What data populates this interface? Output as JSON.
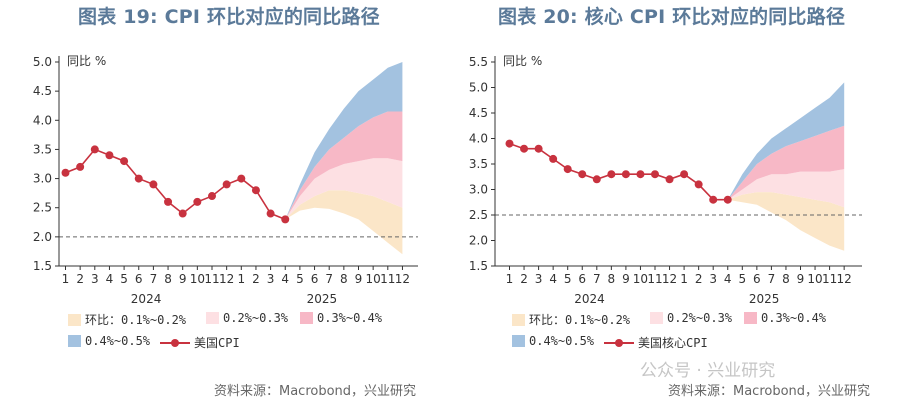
{
  "charts": [
    {
      "title": "图表 19: CPI 环比对应的同比路径",
      "source": "资料来源：Macrobond，兴业研究",
      "legend": {
        "band1": "环比：0.1%~0.2%",
        "band2": "0.2%~0.3%",
        "band3": "0.3%~0.4%",
        "band4": "0.4%~0.5%",
        "line": "美国CPI"
      }
    },
    {
      "title": "图表 20: 核心 CPI 环比对应的同比路径",
      "source": "资料来源：Macrobond，兴业研究",
      "legend": {
        "band1": "环比：0.1%~0.2%",
        "band2": "0.2%~0.3%",
        "band3": "0.3%~0.4%",
        "band4": "0.4%~0.5%",
        "line": "美国核心CPI"
      }
    }
  ],
  "watermark": "公众号 · 兴业研究",
  "colors": {
    "band1": "#fbe6c8",
    "band2": "#fde0e3",
    "band3": "#f7b8c6",
    "band4": "#a3c2e0",
    "line": "#c8323f",
    "title": "#5b7a99"
  },
  "chart_data": [
    {
      "type": "area",
      "title": "图表 19: CPI 环比对应的同比路径",
      "ylabel": "同比 %",
      "ylim": [
        1.5,
        5.0
      ],
      "yticks": [
        1.5,
        2.0,
        2.5,
        3.0,
        3.5,
        4.0,
        4.5,
        5.0
      ],
      "ytick_labels": [
        "1.5",
        "2.0",
        "2.5",
        "3.0",
        "3.5",
        "4.0",
        "4.5",
        "5.0"
      ],
      "x_labels": [
        "1",
        "2",
        "3",
        "4",
        "5",
        "6",
        "7",
        "8",
        "9",
        "10",
        "11",
        "12",
        "1",
        "2",
        "3",
        "4",
        "5",
        "6",
        "7",
        "8",
        "9",
        "10",
        "11",
        "12"
      ],
      "year_labels": [
        {
          "label": "2024",
          "center_index": 6
        },
        {
          "label": "2025",
          "center_index": 18
        }
      ],
      "reference_line": 2.0,
      "actual": {
        "name": "美国CPI",
        "x_index": [
          0,
          1,
          2,
          3,
          4,
          5,
          6,
          7,
          8,
          9,
          10,
          11,
          12,
          13,
          14,
          15
        ],
        "values": [
          3.1,
          3.2,
          3.5,
          3.4,
          3.3,
          3.0,
          2.9,
          2.6,
          2.4,
          2.6,
          2.7,
          2.9,
          3.0,
          2.8,
          2.4,
          2.3
        ]
      },
      "forecast_x_index": [
        15,
        16,
        17,
        18,
        19,
        20,
        21,
        22,
        23
      ],
      "forecast_bounds": [
        [
          2.3,
          2.45,
          2.5,
          2.48,
          2.4,
          2.3,
          2.1,
          1.9,
          1.7
        ],
        [
          2.3,
          2.55,
          2.7,
          2.8,
          2.8,
          2.75,
          2.7,
          2.6,
          2.5
        ],
        [
          2.3,
          2.7,
          3.0,
          3.15,
          3.25,
          3.3,
          3.35,
          3.35,
          3.3
        ],
        [
          2.3,
          2.8,
          3.2,
          3.5,
          3.7,
          3.9,
          4.05,
          4.15,
          4.15
        ],
        [
          2.3,
          2.9,
          3.45,
          3.85,
          4.2,
          4.5,
          4.7,
          4.9,
          5.0
        ]
      ],
      "bands": [
        "环比：0.1%~0.2%",
        "0.2%~0.3%",
        "0.3%~0.4%",
        "0.4%~0.5%"
      ]
    },
    {
      "type": "area",
      "title": "图表 20: 核心 CPI 环比对应的同比路径",
      "ylabel": "同比 %",
      "ylim": [
        1.5,
        5.5
      ],
      "yticks": [
        1.5,
        2.0,
        2.5,
        3.0,
        3.5,
        4.0,
        4.5,
        5.0,
        5.5
      ],
      "ytick_labels": [
        "1.5",
        "2.0",
        "2.5",
        "3.0",
        "3.5",
        "4.0",
        "4.5",
        "5.0",
        "5.5"
      ],
      "x_labels": [
        "1",
        "2",
        "3",
        "4",
        "5",
        "6",
        "7",
        "8",
        "9",
        "10",
        "11",
        "12",
        "1",
        "2",
        "3",
        "4",
        "5",
        "6",
        "7",
        "8",
        "9",
        "10",
        "11",
        "12"
      ],
      "year_labels": [
        {
          "label": "2024",
          "center_index": 6
        },
        {
          "label": "2025",
          "center_index": 18
        }
      ],
      "reference_line": 2.5,
      "actual": {
        "name": "美国核心CPI",
        "x_index": [
          0,
          1,
          2,
          3,
          4,
          5,
          6,
          7,
          8,
          9,
          10,
          11,
          12,
          13,
          14,
          15
        ],
        "values": [
          3.9,
          3.8,
          3.8,
          3.6,
          3.4,
          3.3,
          3.2,
          3.3,
          3.3,
          3.3,
          3.3,
          3.2,
          3.3,
          3.1,
          2.8,
          2.8
        ]
      },
      "forecast_x_index": [
        15,
        16,
        17,
        18,
        19,
        20,
        21,
        22,
        23
      ],
      "forecast_bounds": [
        [
          2.8,
          2.75,
          2.7,
          2.55,
          2.4,
          2.2,
          2.05,
          1.9,
          1.8
        ],
        [
          2.8,
          2.9,
          2.95,
          2.95,
          2.9,
          2.85,
          2.8,
          2.75,
          2.65
        ],
        [
          2.8,
          3.0,
          3.2,
          3.3,
          3.3,
          3.35,
          3.35,
          3.35,
          3.4
        ],
        [
          2.8,
          3.15,
          3.5,
          3.7,
          3.85,
          3.95,
          4.05,
          4.15,
          4.25
        ],
        [
          2.8,
          3.3,
          3.7,
          4.0,
          4.2,
          4.4,
          4.6,
          4.8,
          5.1
        ]
      ],
      "bands": [
        "环比：0.1%~0.2%",
        "0.2%~0.3%",
        "0.3%~0.4%",
        "0.4%~0.5%"
      ]
    }
  ]
}
